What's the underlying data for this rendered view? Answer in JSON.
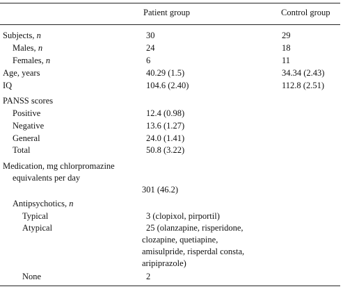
{
  "header": {
    "patient": "Patient group",
    "control": "Control group"
  },
  "rows": {
    "subjects": {
      "label": "Subjects, ",
      "n": "n",
      "patient": "30",
      "control": "29"
    },
    "males": {
      "label": "Males, ",
      "n": "n",
      "patient": "24",
      "control": "18"
    },
    "females": {
      "label": "Females, ",
      "n": "n",
      "patient": "6",
      "control": "11"
    },
    "age": {
      "label": "Age, years",
      "patient": "40.29 (1.5)",
      "control": "34.34 (2.43)"
    },
    "iq": {
      "label": "IQ",
      "patient": "104.6 (2.40)",
      "control": "112.8 (2.51)"
    },
    "panss": {
      "label": "PANSS scores"
    },
    "positive": {
      "label": "Positive",
      "patient": "12.4 (0.98)"
    },
    "negative": {
      "label": "Negative",
      "patient": "13.6 (1.27)"
    },
    "general": {
      "label": "General",
      "patient": "24.0 (1.41)"
    },
    "total": {
      "label": "Total",
      "patient": "50.8 (3.22)"
    },
    "medication": {
      "label_line1": "Medication, mg chlorpromazine",
      "label_line2": "equivalents per day",
      "patient": "301 (46.2)"
    },
    "antipsychotics": {
      "label": "Antipsychotics, ",
      "n": "n"
    },
    "typical": {
      "label": "Typical",
      "patient": "3 (clopixol, pirportil)"
    },
    "atypical": {
      "label": "Atypical",
      "patient_lines": [
        "25 (olanzapine, risperidone,",
        "clozapine, quetiapine,",
        "amisulpride, risperdal consta,",
        "aripiprazole)"
      ]
    },
    "none": {
      "label": "None",
      "patient": "2"
    }
  }
}
